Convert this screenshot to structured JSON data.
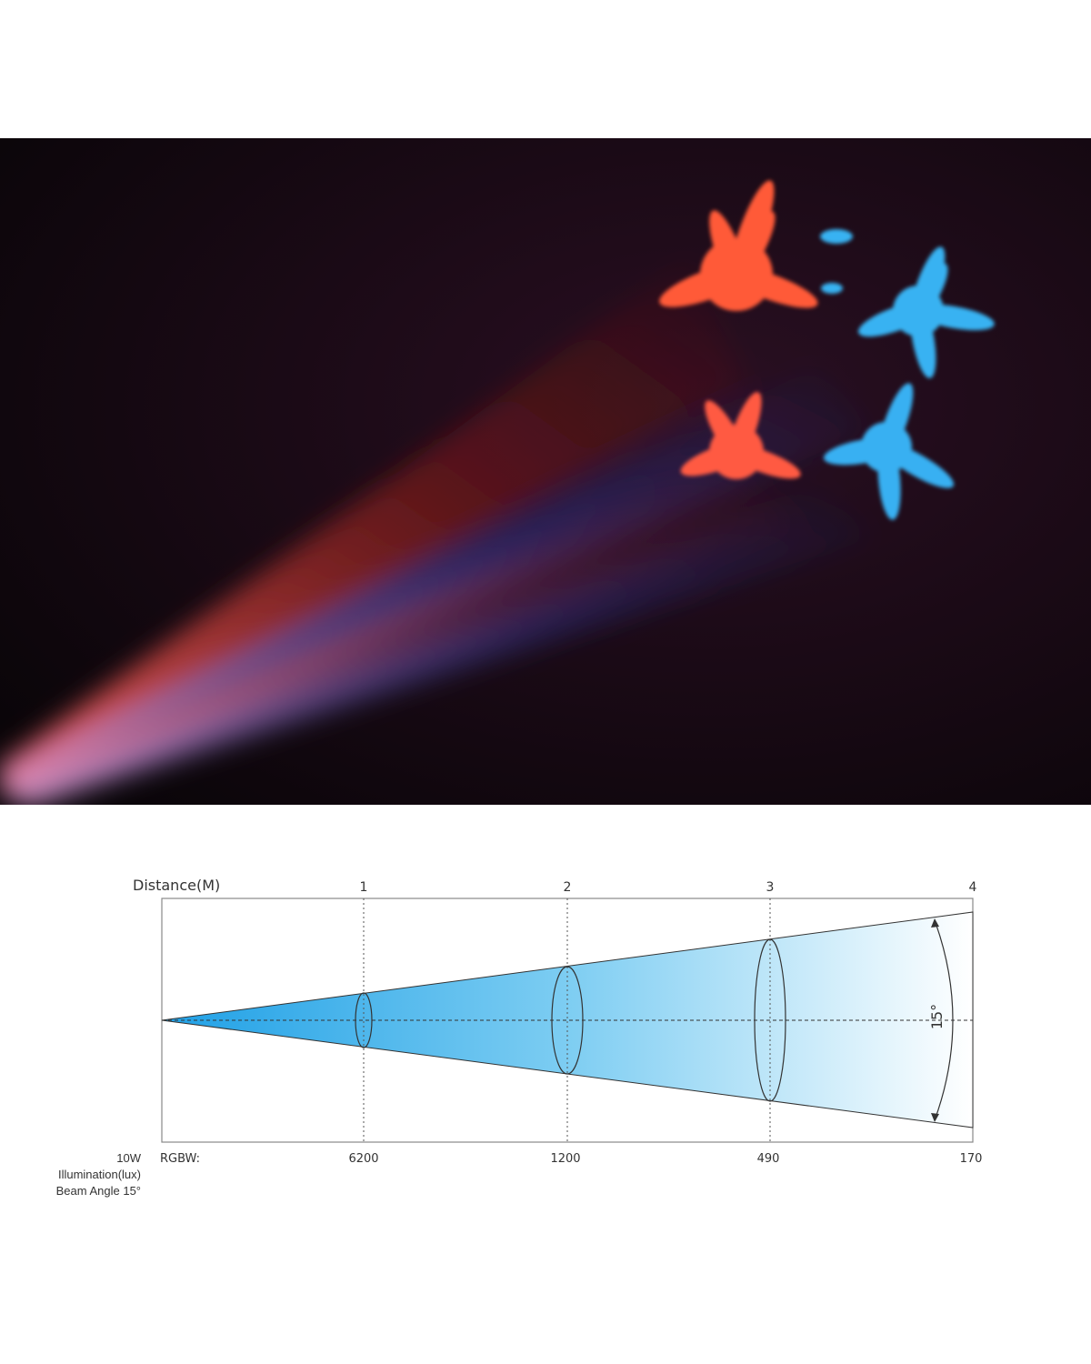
{
  "photo": {
    "subject": "beam-projection-photo",
    "beam_colors": [
      "#ff5a3a",
      "#3ab0f0"
    ],
    "background": "#12080f"
  },
  "diagram": {
    "distance_label": "Distance(M)",
    "distances": [
      "1",
      "2",
      "3",
      "4"
    ],
    "row_label": "RGBW:",
    "illumination_values": [
      "6200",
      "1200",
      "490",
      "170"
    ],
    "angle_label": "15°",
    "cone_color_start": "#1fa0e6",
    "cone_color_end": "#ffffff"
  },
  "legend": {
    "power": "10W",
    "illumination": "Illumination(lux)",
    "beam_angle": "Beam Angle 15°"
  }
}
